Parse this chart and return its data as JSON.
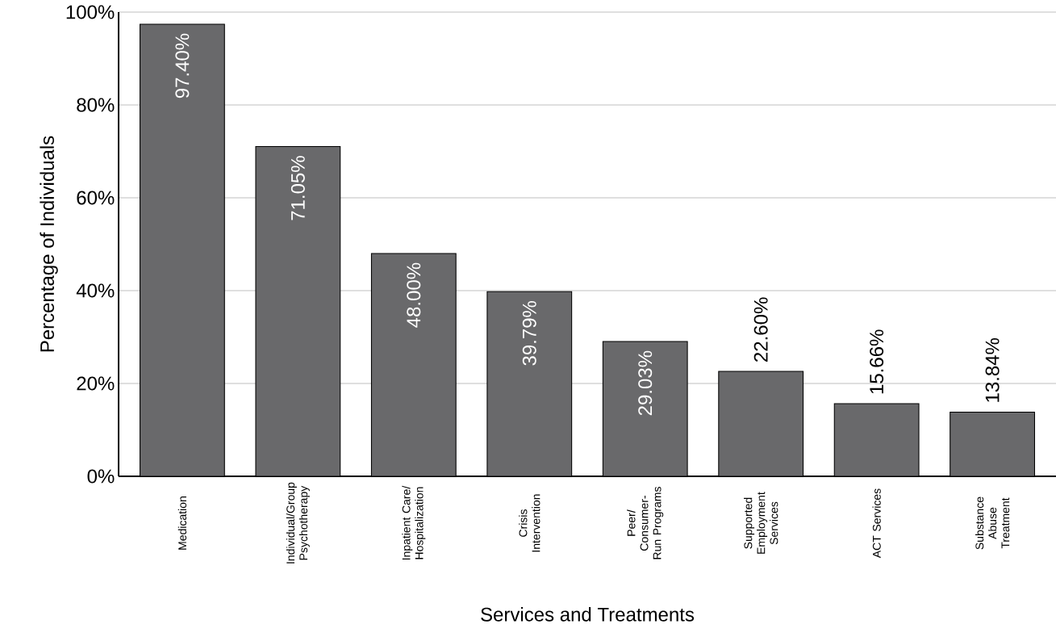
{
  "chart_data": {
    "type": "bar",
    "xlabel": "Services and Treatments",
    "ylabel": "Percentage of Individuals",
    "categories": [
      "Medication",
      "Individual/Group Psychotherapy",
      "Inpatient Care/ Hospitalization",
      "Crisis Intervention",
      "Peer/ Consumer-Run Programs",
      "Supported Employment Services",
      "ACT Services",
      "Substance Abuse Treatment"
    ],
    "values": [
      97.4,
      71.05,
      48.0,
      39.79,
      29.03,
      22.6,
      15.66,
      13.84
    ],
    "value_labels": [
      "97.40%",
      "71.05%",
      "48.00%",
      "39.79%",
      "29.03%",
      "22.60%",
      "15.66%",
      "13.84%"
    ],
    "color": "#69696b",
    "ylim": [
      0,
      100
    ],
    "yticks": [
      {
        "value": 0,
        "label": "0%"
      },
      {
        "value": 20,
        "label": "20%"
      },
      {
        "value": 40,
        "label": "40%"
      },
      {
        "value": 60,
        "label": "60%"
      },
      {
        "value": 80,
        "label": "80%"
      },
      {
        "value": 100,
        "label": "100%"
      }
    ],
    "grid": "y"
  }
}
